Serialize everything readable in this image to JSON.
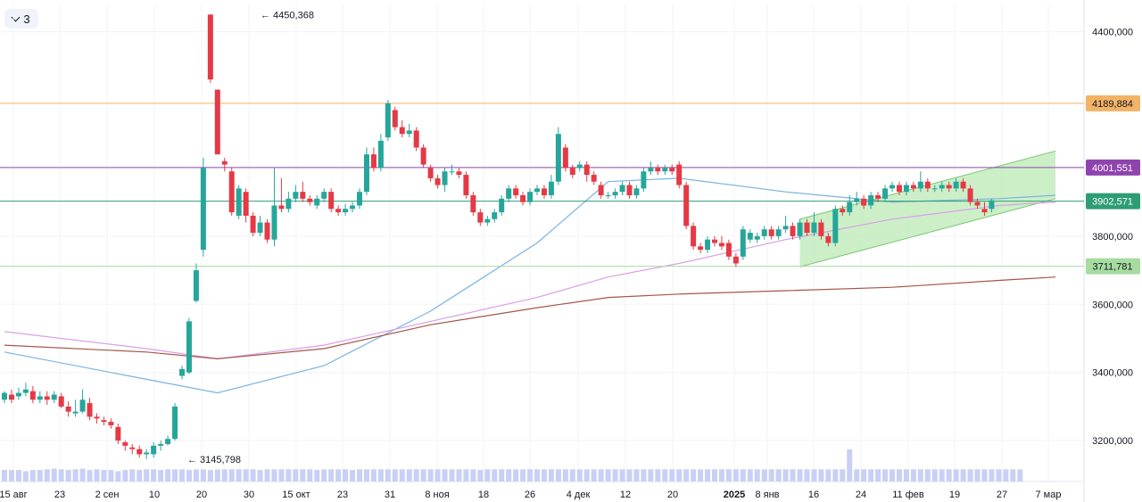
{
  "toolbar": {
    "collapse_count": "3",
    "collapse_icon": "chevron-down-icon"
  },
  "colors": {
    "up": "#26a69a",
    "down": "#e53945",
    "volume": "#c8d0f5",
    "ma_fast": "#7ab3e0",
    "ma_mid": "#d8a0e6",
    "ma_slow": "#a65548",
    "channel_fill": "#b7e8b0",
    "channel_line": "#78c86e",
    "level_orange": "#f2b366",
    "level_purple": "#8e44ad",
    "level_gray": "#5d606b",
    "level_green": "#a6dca0"
  },
  "chart_data": {
    "type": "candlestick",
    "y_axis": {
      "range": [
        3080000,
        4480000
      ],
      "ticks": [
        {
          "value": 4400000,
          "label": "4400,000"
        },
        {
          "value": 3800000,
          "label": "3800,000"
        },
        {
          "value": 3600000,
          "label": "3600,000"
        },
        {
          "value": 3400000,
          "label": "3400,000"
        },
        {
          "value": 3200000,
          "label": "3200,000"
        }
      ]
    },
    "x_axis": {
      "ticks": [
        "15 авг",
        "23",
        "2 сен",
        "10",
        "20",
        "30",
        "15 окт",
        "23",
        "31",
        "8 ноя",
        "18",
        "26",
        "4 дек",
        "12",
        "20",
        "2025",
        "8 янв",
        "16",
        "24",
        "11 фев",
        "19",
        "27",
        "7 мар"
      ],
      "bold_tick": "2025"
    },
    "levels": [
      {
        "value": 4189884,
        "label": "4189,884",
        "color": "#f2b366",
        "text_color": "#131722"
      },
      {
        "value": 4001551,
        "label": "4001,551",
        "color": "#8e44ad",
        "text_color": "#ffffff"
      },
      {
        "value": 3902571,
        "label": "3902,571",
        "color": "#2e9e72",
        "text_color": "#ffffff"
      },
      {
        "value": 3711781,
        "label": "3711,781",
        "color": "#a6dca0",
        "text_color": "#131722"
      }
    ],
    "annotations": [
      {
        "text": "4450,368",
        "value": 4450368
      },
      {
        "text": "3145,798",
        "value": 3145798
      }
    ],
    "candles": [
      [
        3320000,
        3340000,
        3345000,
        3310000
      ],
      [
        3335000,
        3320000,
        3350000,
        3310000
      ],
      [
        3330000,
        3340000,
        3355000,
        3320000
      ],
      [
        3340000,
        3350000,
        3370000,
        3330000
      ],
      [
        3345000,
        3320000,
        3360000,
        3310000
      ],
      [
        3320000,
        3330000,
        3345000,
        3310000
      ],
      [
        3330000,
        3320000,
        3345000,
        3305000
      ],
      [
        3320000,
        3335000,
        3345000,
        3310000
      ],
      [
        3330000,
        3300000,
        3340000,
        3295000
      ],
      [
        3300000,
        3285000,
        3315000,
        3270000
      ],
      [
        3280000,
        3285000,
        3320000,
        3270000
      ],
      [
        3285000,
        3320000,
        3350000,
        3280000
      ],
      [
        3310000,
        3270000,
        3325000,
        3260000
      ],
      [
        3270000,
        3265000,
        3280000,
        3250000
      ],
      [
        3260000,
        3255000,
        3270000,
        3245000
      ],
      [
        3255000,
        3245000,
        3265000,
        3235000
      ],
      [
        3240000,
        3200000,
        3250000,
        3190000
      ],
      [
        3195000,
        3185000,
        3200000,
        3170000
      ],
      [
        3180000,
        3175000,
        3190000,
        3160000
      ],
      [
        3175000,
        3160000,
        3185000,
        3150000
      ],
      [
        3160000,
        3165000,
        3175000,
        3145798
      ],
      [
        3160000,
        3185000,
        3195000,
        3150000
      ],
      [
        3185000,
        3190000,
        3200000,
        3170000
      ],
      [
        3190000,
        3205000,
        3215000,
        3185000
      ],
      [
        3205000,
        3300000,
        3310000,
        3200000
      ],
      [
        3390000,
        3410000,
        3420000,
        3380000
      ],
      [
        3400000,
        3550000,
        3560000,
        3395000
      ],
      [
        3610000,
        3700000,
        3720000,
        3605000
      ],
      [
        3760000,
        4000000,
        4030000,
        3740000
      ],
      [
        4450368,
        4260000,
        4450368,
        4250000
      ],
      [
        4230000,
        4040000,
        4230000,
        4040000
      ],
      [
        4020000,
        4010000,
        4030000,
        3990000
      ],
      [
        3990000,
        3870000,
        4000000,
        3860000
      ],
      [
        3860000,
        3940000,
        3950000,
        3850000
      ],
      [
        3930000,
        3860000,
        3940000,
        3840000
      ],
      [
        3860000,
        3810000,
        3870000,
        3800000
      ],
      [
        3810000,
        3840000,
        3860000,
        3800000
      ],
      [
        3840000,
        3790000,
        3850000,
        3780000
      ],
      [
        3790000,
        3890000,
        4000000,
        3770000
      ],
      [
        3890000,
        3880000,
        3970000,
        3870000
      ],
      [
        3880000,
        3910000,
        3930000,
        3870000
      ],
      [
        3910000,
        3930000,
        3950000,
        3900000
      ],
      [
        3930000,
        3910000,
        3960000,
        3900000
      ],
      [
        3910000,
        3900000,
        3920000,
        3890000
      ],
      [
        3890000,
        3910000,
        3920000,
        3880000
      ],
      [
        3910000,
        3930000,
        3940000,
        3900000
      ],
      [
        3930000,
        3880000,
        3940000,
        3870000
      ],
      [
        3880000,
        3870000,
        3890000,
        3860000
      ],
      [
        3870000,
        3880000,
        3895000,
        3860000
      ],
      [
        3880000,
        3890000,
        3900000,
        3870000
      ],
      [
        3890000,
        3930000,
        3940000,
        3880000
      ],
      [
        3930000,
        4040000,
        4060000,
        3920000
      ],
      [
        4040000,
        4000000,
        4060000,
        3990000
      ],
      [
        4000000,
        4080000,
        4100000,
        3990000
      ],
      [
        4090000,
        4190000,
        4200000,
        4080000
      ],
      [
        4170000,
        4120000,
        4180000,
        4110000
      ],
      [
        4120000,
        4100000,
        4140000,
        4090000
      ],
      [
        4100000,
        4110000,
        4130000,
        4090000
      ],
      [
        4110000,
        4060000,
        4120000,
        4050000
      ],
      [
        4060000,
        4010000,
        4070000,
        4000000
      ],
      [
        4000000,
        3970000,
        4010000,
        3960000
      ],
      [
        3970000,
        3950000,
        3980000,
        3940000
      ],
      [
        3950000,
        3990000,
        4000000,
        3930000
      ],
      [
        3990000,
        3990000,
        4010000,
        3980000
      ],
      [
        3990000,
        3980000,
        4000000,
        3970000
      ],
      [
        3980000,
        3920000,
        3990000,
        3910000
      ],
      [
        3920000,
        3870000,
        3930000,
        3860000
      ],
      [
        3870000,
        3840000,
        3880000,
        3830000
      ],
      [
        3840000,
        3850000,
        3860000,
        3830000
      ],
      [
        3850000,
        3870000,
        3880000,
        3840000
      ],
      [
        3870000,
        3910000,
        3920000,
        3860000
      ],
      [
        3910000,
        3940000,
        3950000,
        3900000
      ],
      [
        3940000,
        3920000,
        3950000,
        3910000
      ],
      [
        3920000,
        3900000,
        3930000,
        3890000
      ],
      [
        3900000,
        3930000,
        3940000,
        3890000
      ],
      [
        3930000,
        3940000,
        3950000,
        3920000
      ],
      [
        3940000,
        3920000,
        3950000,
        3910000
      ],
      [
        3920000,
        3960000,
        3980000,
        3910000
      ],
      [
        3960000,
        4100000,
        4120000,
        3950000
      ],
      [
        4060000,
        4000000,
        4070000,
        3990000
      ],
      [
        4000000,
        3980000,
        4010000,
        3970000
      ],
      [
        4000000,
        4010000,
        4020000,
        3990000
      ],
      [
        4010000,
        3980000,
        4020000,
        3960000
      ],
      [
        3980000,
        3960000,
        3990000,
        3950000
      ],
      [
        3950000,
        3920000,
        3960000,
        3910000
      ],
      [
        3920000,
        3920000,
        3930000,
        3910000
      ],
      [
        3920000,
        3930000,
        3940000,
        3910000
      ],
      [
        3930000,
        3950000,
        3960000,
        3920000
      ],
      [
        3950000,
        3920000,
        3960000,
        3910000
      ],
      [
        3920000,
        3940000,
        3950000,
        3910000
      ],
      [
        3940000,
        3990000,
        4000000,
        3930000
      ],
      [
        3990000,
        4000000,
        4020000,
        3980000
      ],
      [
        4000000,
        3990000,
        4010000,
        3980000
      ],
      [
        3990000,
        4000000,
        4010000,
        3980000
      ],
      [
        4000000,
        3990000,
        4010000,
        3980000
      ],
      [
        4010000,
        3950000,
        4020000,
        3940000
      ],
      [
        3950000,
        3830000,
        3960000,
        3820000
      ],
      [
        3830000,
        3770000,
        3840000,
        3760000
      ],
      [
        3770000,
        3760000,
        3780000,
        3750000
      ],
      [
        3760000,
        3790000,
        3800000,
        3750000
      ],
      [
        3790000,
        3780000,
        3800000,
        3770000
      ],
      [
        3780000,
        3770000,
        3800000,
        3760000
      ],
      [
        3780000,
        3740000,
        3790000,
        3730000
      ],
      [
        3740000,
        3720000,
        3750000,
        3710000
      ],
      [
        3740000,
        3820000,
        3830000,
        3730000
      ],
      [
        3790000,
        3810000,
        3820000,
        3780000
      ],
      [
        3790000,
        3800000,
        3810000,
        3780000
      ],
      [
        3800000,
        3820000,
        3830000,
        3790000
      ],
      [
        3820000,
        3800000,
        3830000,
        3790000
      ],
      [
        3800000,
        3820000,
        3830000,
        3790000
      ],
      [
        3820000,
        3830000,
        3860000,
        3810000
      ],
      [
        3830000,
        3800000,
        3840000,
        3790000
      ],
      [
        3800000,
        3840000,
        3850000,
        3790000
      ],
      [
        3840000,
        3810000,
        3850000,
        3800000
      ],
      [
        3810000,
        3840000,
        3870000,
        3800000
      ],
      [
        3840000,
        3800000,
        3850000,
        3790000
      ],
      [
        3800000,
        3780000,
        3810000,
        3770000
      ],
      [
        3780000,
        3880000,
        3890000,
        3770000
      ],
      [
        3880000,
        3870000,
        3890000,
        3860000
      ],
      [
        3870000,
        3900000,
        3920000,
        3860000
      ],
      [
        3900000,
        3910000,
        3930000,
        3890000
      ],
      [
        3910000,
        3890000,
        3920000,
        3880000
      ],
      [
        3890000,
        3920000,
        3930000,
        3880000
      ],
      [
        3920000,
        3910000,
        3930000,
        3900000
      ],
      [
        3910000,
        3940000,
        3950000,
        3900000
      ],
      [
        3940000,
        3950000,
        3960000,
        3930000
      ],
      [
        3950000,
        3930000,
        3960000,
        3920000
      ],
      [
        3930000,
        3950000,
        3960000,
        3920000
      ],
      [
        3950000,
        3940000,
        3960000,
        3930000
      ],
      [
        3940000,
        3960000,
        3990000,
        3930000
      ],
      [
        3960000,
        3940000,
        3970000,
        3930000
      ],
      [
        3940000,
        3940000,
        3950000,
        3930000
      ],
      [
        3940000,
        3950000,
        3960000,
        3930000
      ],
      [
        3950000,
        3940000,
        3960000,
        3930000
      ],
      [
        3940000,
        3960000,
        3970000,
        3930000
      ],
      [
        3960000,
        3940000,
        3970000,
        3930000
      ],
      [
        3940000,
        3900000,
        3950000,
        3890000
      ],
      [
        3900000,
        3890000,
        3910000,
        3880000
      ],
      [
        3880000,
        3870000,
        3900000,
        3860000
      ],
      [
        3880000,
        3905000,
        3910000,
        3870000
      ]
    ],
    "volume": {
      "range": [
        0,
        1000
      ],
      "values": [
        90,
        90,
        90,
        80,
        90,
        90,
        95,
        100,
        95,
        90,
        95,
        100,
        90,
        95,
        90,
        90,
        80,
        90,
        95,
        90,
        95,
        95,
        90,
        95,
        95,
        95,
        90,
        95,
        95,
        90,
        95,
        95,
        95,
        95,
        95,
        95,
        90,
        95,
        95,
        95,
        95,
        95,
        95,
        95,
        90,
        95,
        95,
        95,
        95,
        90,
        95,
        95,
        95,
        95,
        95,
        95,
        95,
        95,
        95,
        95,
        95,
        95,
        95,
        95,
        95,
        95,
        95,
        90,
        95,
        95,
        95,
        95,
        95,
        95,
        95,
        95,
        95,
        95,
        95,
        95,
        95,
        95,
        95,
        95,
        95,
        95,
        95,
        95,
        95,
        95,
        95,
        95,
        95,
        95,
        95,
        95,
        95,
        95,
        95,
        95,
        95,
        95,
        95,
        95,
        95,
        95,
        95,
        95,
        95,
        95,
        95,
        95,
        95,
        95,
        95,
        95,
        95,
        95,
        95,
        250,
        95,
        95,
        95,
        95,
        95,
        95,
        95,
        95,
        95,
        95,
        95,
        95,
        95,
        95,
        95,
        95,
        95,
        95,
        95,
        95,
        95,
        95,
        95,
        95
      ]
    },
    "moving_averages": [
      {
        "color": "#7ab3e0",
        "points": [
          [
            0,
            3460000
          ],
          [
            20,
            3380000
          ],
          [
            30,
            3340000
          ],
          [
            45,
            3420000
          ],
          [
            60,
            3580000
          ],
          [
            75,
            3780000
          ],
          [
            85,
            3960000
          ],
          [
            95,
            3970000
          ],
          [
            110,
            3930000
          ],
          [
            125,
            3900000
          ],
          [
            140,
            3910000
          ],
          [
            148,
            3920000
          ]
        ]
      },
      {
        "color": "#d8a0e6",
        "points": [
          [
            0,
            3520000
          ],
          [
            20,
            3470000
          ],
          [
            30,
            3440000
          ],
          [
            45,
            3480000
          ],
          [
            60,
            3550000
          ],
          [
            75,
            3620000
          ],
          [
            85,
            3680000
          ],
          [
            95,
            3720000
          ],
          [
            110,
            3790000
          ],
          [
            125,
            3850000
          ],
          [
            140,
            3890000
          ],
          [
            148,
            3900000
          ]
        ]
      },
      {
        "color": "#a65548",
        "points": [
          [
            0,
            3480000
          ],
          [
            20,
            3460000
          ],
          [
            30,
            3440000
          ],
          [
            45,
            3470000
          ],
          [
            60,
            3540000
          ],
          [
            75,
            3590000
          ],
          [
            85,
            3620000
          ],
          [
            95,
            3630000
          ],
          [
            110,
            3640000
          ],
          [
            125,
            3650000
          ],
          [
            140,
            3670000
          ],
          [
            148,
            3680000
          ]
        ]
      }
    ],
    "channel": {
      "top": [
        [
          112,
          3850000
        ],
        [
          148,
          4050000
        ]
      ],
      "bottom": [
        [
          112,
          3710000
        ],
        [
          148,
          3910000
        ]
      ]
    }
  }
}
